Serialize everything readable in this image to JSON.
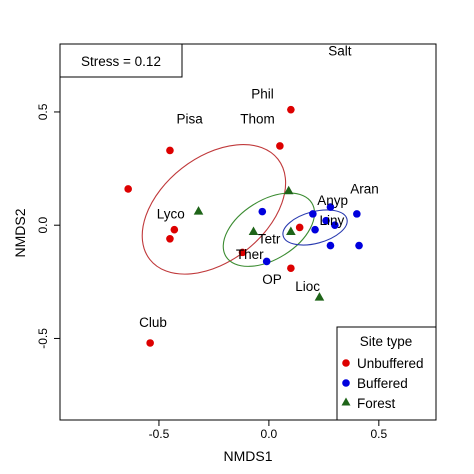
{
  "chart_data": {
    "type": "scatter",
    "xlabel": "NMDS1",
    "ylabel": "NMDS2",
    "xlim": [
      -0.95,
      0.76
    ],
    "ylim": [
      -0.86,
      0.8
    ],
    "xticks": [
      -0.5,
      0.0,
      0.5
    ],
    "yticks": [
      -0.5,
      0.0,
      0.5
    ],
    "xtick_labels": [
      "-0.5",
      "0.0",
      "0.5"
    ],
    "ytick_labels": [
      "-0.5",
      "0.0",
      "0.5"
    ],
    "stress_label": "Stress = 0.12",
    "legend": {
      "title": "Site type",
      "position": "bottom-right",
      "entries": [
        {
          "label": "Unbuffered",
          "color": "#dd0000",
          "marker": "circle"
        },
        {
          "label": "Buffered",
          "color": "#0000dd",
          "marker": "circle"
        },
        {
          "label": "Forest",
          "color": "#1e6418",
          "marker": "triangle"
        }
      ]
    },
    "series": [
      {
        "name": "Unbuffered",
        "color": "#dd0000",
        "marker": "circle",
        "points": [
          [
            -0.64,
            0.16
          ],
          [
            -0.45,
            0.33
          ],
          [
            -0.43,
            -0.02
          ],
          [
            -0.45,
            -0.06
          ],
          [
            0.05,
            0.35
          ],
          [
            0.1,
            0.51
          ],
          [
            -0.54,
            -0.52
          ],
          [
            0.14,
            -0.01
          ],
          [
            0.1,
            -0.19
          ],
          [
            -0.12,
            -0.12
          ]
        ]
      },
      {
        "name": "Buffered",
        "color": "#0000dd",
        "marker": "circle",
        "points": [
          [
            -0.03,
            0.06
          ],
          [
            -0.01,
            -0.16
          ],
          [
            0.2,
            0.05
          ],
          [
            0.21,
            -0.02
          ],
          [
            0.26,
            0.02
          ],
          [
            0.28,
            0.08
          ],
          [
            0.28,
            -0.09
          ],
          [
            0.3,
            0.0
          ],
          [
            0.4,
            0.05
          ],
          [
            0.41,
            -0.09
          ]
        ]
      },
      {
        "name": "Forest",
        "color": "#1e6418",
        "marker": "triangle",
        "points": [
          [
            -0.32,
            0.06
          ],
          [
            -0.07,
            -0.03
          ],
          [
            0.09,
            0.15
          ],
          [
            0.1,
            -0.03
          ],
          [
            0.23,
            -0.32
          ]
        ]
      }
    ],
    "ellipses": [
      {
        "group": "Unbuffered",
        "color": "#c0393b",
        "center": [
          -0.25,
          0.07
        ],
        "rx": 0.37,
        "ry": 0.23,
        "rotation_deg": 38
      },
      {
        "group": "Forest",
        "color": "#3c8c32",
        "center": [
          0.0,
          -0.02
        ],
        "rx": 0.23,
        "ry": 0.13,
        "rotation_deg": 32
      },
      {
        "group": "Buffered",
        "color": "#2a3bb0",
        "center": [
          0.21,
          -0.01
        ],
        "rx": 0.15,
        "ry": 0.07,
        "rotation_deg": 15
      }
    ],
    "labels": [
      {
        "text": "Salt",
        "x": 0.27,
        "y": 0.75
      },
      {
        "text": "Phil",
        "x": -0.08,
        "y": 0.56
      },
      {
        "text": "Thom",
        "x": -0.13,
        "y": 0.45
      },
      {
        "text": "Pisa",
        "x": -0.42,
        "y": 0.45
      },
      {
        "text": "Aran",
        "x": 0.37,
        "y": 0.14
      },
      {
        "text": "Anyp",
        "x": 0.22,
        "y": 0.09
      },
      {
        "text": "Liny",
        "x": 0.23,
        "y": 0.0
      },
      {
        "text": "Lyco",
        "x": -0.51,
        "y": 0.03
      },
      {
        "text": "Tetr",
        "x": -0.05,
        "y": -0.08
      },
      {
        "text": "Ther",
        "x": -0.15,
        "y": -0.15
      },
      {
        "text": "OP",
        "x": -0.03,
        "y": -0.26
      },
      {
        "text": "Lioc",
        "x": 0.12,
        "y": -0.29
      },
      {
        "text": "Club",
        "x": -0.59,
        "y": -0.45
      }
    ]
  }
}
